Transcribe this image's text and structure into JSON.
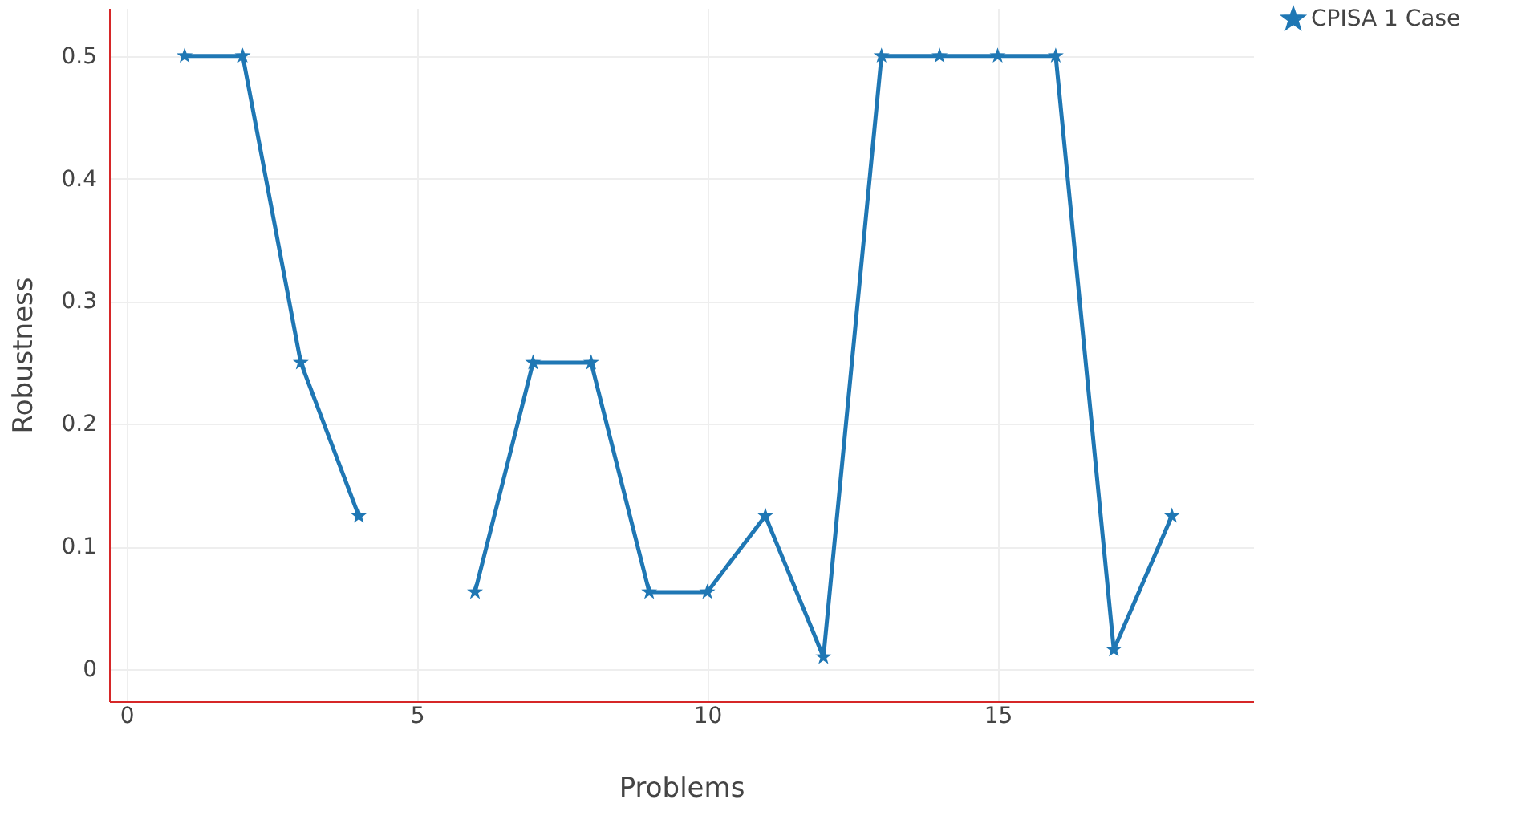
{
  "chart_data": {
    "type": "line",
    "xlabel": "Problems",
    "ylabel": "Robustness",
    "x": [
      1,
      2,
      3,
      4,
      5,
      6,
      7,
      8,
      9,
      10,
      11,
      12,
      13,
      14,
      15,
      16,
      17,
      18
    ],
    "series": [
      {
        "name": "CPISA 1 Case",
        "color": "#1f77b4",
        "values": [
          0.5,
          0.5,
          0.25,
          0.125,
          null,
          0.063,
          0.25,
          0.25,
          0.063,
          0.063,
          0.125,
          0.01,
          0.5,
          0.5,
          0.5,
          0.5,
          0.016,
          0.125
        ]
      }
    ],
    "xlim": [
      -0.3,
      19.4
    ],
    "ylim": [
      -0.026,
      0.539
    ],
    "xticks": [
      0,
      5,
      10,
      15
    ],
    "yticks": [
      0,
      0.1,
      0.2,
      0.3,
      0.4,
      0.5
    ],
    "grid": true,
    "legend": "top right",
    "marker": "star",
    "line_style": "solid"
  }
}
